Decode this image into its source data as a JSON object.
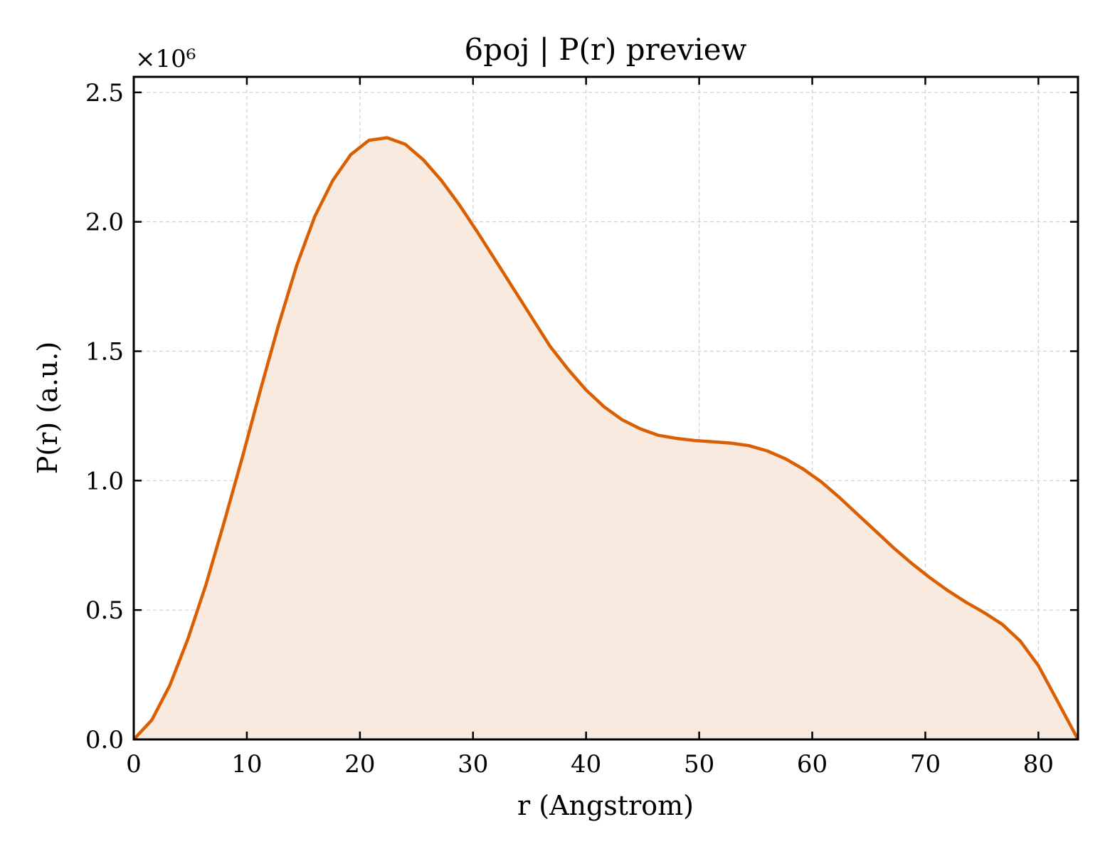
{
  "chart_data": {
    "type": "area",
    "title": "6poj | P(r) preview",
    "xlabel": "r (Angstrom)",
    "ylabel": "P(r) (a.u.)",
    "y_offset_label": "×10⁶",
    "xlim": [
      0,
      83.5
    ],
    "ylim": [
      0,
      2.56
    ],
    "y_scale_factor": 1000000,
    "grid": true,
    "x_ticks": [
      0,
      10,
      20,
      30,
      40,
      50,
      60,
      70,
      80
    ],
    "x_tick_labels": [
      "0",
      "10",
      "20",
      "30",
      "40",
      "50",
      "60",
      "70",
      "80"
    ],
    "y_ticks": [
      0,
      0.5,
      1.0,
      1.5,
      2.0,
      2.5
    ],
    "y_tick_labels": [
      "0.0",
      "0.5",
      "1.0",
      "1.5",
      "2.0",
      "2.5"
    ],
    "line_color": "#d95f02",
    "fill_color": "#f9eadf",
    "series": [
      {
        "x": [
          0,
          1.6,
          3.2,
          4.8,
          6.4,
          8.0,
          9.6,
          11.2,
          12.8,
          14.4,
          16.0,
          17.6,
          19.2,
          20.8,
          22.4,
          24.0,
          25.6,
          27.2,
          28.8,
          30.4,
          32.0,
          33.6,
          35.2,
          36.8,
          38.4,
          40.0,
          41.6,
          43.2,
          44.8,
          46.4,
          48.0,
          49.6,
          51.2,
          52.8,
          54.4,
          56.0,
          57.6,
          59.2,
          60.8,
          62.4,
          64.0,
          65.6,
          67.2,
          68.8,
          70.4,
          72.0,
          73.6,
          75.2,
          76.8,
          78.4,
          80.0,
          81.6,
          83.5
        ],
        "values": [
          0.0,
          0.075,
          0.21,
          0.39,
          0.6,
          0.84,
          1.09,
          1.35,
          1.6,
          1.83,
          2.02,
          2.16,
          2.26,
          2.315,
          2.325,
          2.3,
          2.24,
          2.16,
          2.065,
          1.96,
          1.85,
          1.74,
          1.63,
          1.52,
          1.43,
          1.35,
          1.285,
          1.235,
          1.2,
          1.175,
          1.163,
          1.155,
          1.15,
          1.145,
          1.135,
          1.115,
          1.085,
          1.045,
          0.995,
          0.935,
          0.87,
          0.805,
          0.74,
          0.68,
          0.625,
          0.575,
          0.53,
          0.49,
          0.445,
          0.38,
          0.285,
          0.155,
          0.0
        ]
      }
    ]
  }
}
